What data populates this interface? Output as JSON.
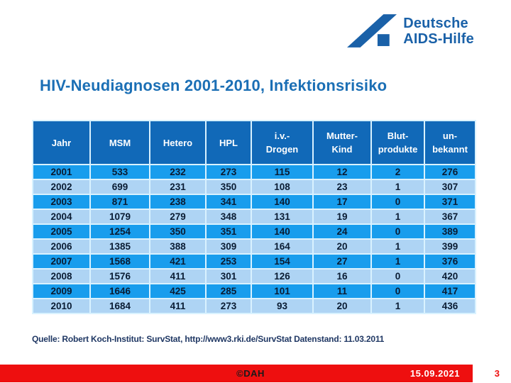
{
  "logo": {
    "line1": "Deutsche",
    "line2": "AIDS-Hilfe"
  },
  "title": "HIV-Neudiagnosen 2001-2010, Infektionsrisiko",
  "chart_data": {
    "type": "table",
    "title": "HIV-Neudiagnosen 2001-2010, Infektionsrisiko",
    "columns": [
      "Jahr",
      "MSM",
      "Hetero",
      "HPL",
      "i.v.-Drogen",
      "Mutter-Kind",
      "Blutprodukte",
      "unbekannt"
    ],
    "header_lines": [
      [
        "Jahr"
      ],
      [
        "MSM"
      ],
      [
        "Hetero"
      ],
      [
        "HPL"
      ],
      [
        "i.v.-",
        "Drogen"
      ],
      [
        "Mutter-",
        "Kind"
      ],
      [
        "Blut-",
        "produkte"
      ],
      [
        "un-",
        "bekannt"
      ]
    ],
    "rows": [
      [
        "2001",
        "533",
        "232",
        "273",
        "115",
        "12",
        "2",
        "276"
      ],
      [
        "2002",
        "699",
        "231",
        "350",
        "108",
        "23",
        "1",
        "307"
      ],
      [
        "2003",
        "871",
        "238",
        "341",
        "140",
        "17",
        "0",
        "371"
      ],
      [
        "2004",
        "1079",
        "279",
        "348",
        "131",
        "19",
        "1",
        "367"
      ],
      [
        "2005",
        "1254",
        "350",
        "351",
        "140",
        "24",
        "0",
        "389"
      ],
      [
        "2006",
        "1385",
        "388",
        "309",
        "164",
        "20",
        "1",
        "399"
      ],
      [
        "2007",
        "1568",
        "421",
        "253",
        "154",
        "27",
        "1",
        "376"
      ],
      [
        "2008",
        "1576",
        "411",
        "301",
        "126",
        "16",
        "0",
        "420"
      ],
      [
        "2009",
        "1646",
        "425",
        "285",
        "101",
        "11",
        "0",
        "417"
      ],
      [
        "2010",
        "1684",
        "411",
        "273",
        "93",
        "20",
        "1",
        "436"
      ]
    ]
  },
  "source": "Quelle: Robert Koch-Institut: SurvStat, http://www3.rki.de/SurvStat Datenstand: 11.03.2011",
  "footer": {
    "copyright": "©DAH",
    "date": "15.09.2021",
    "page": "3"
  },
  "colors": {
    "logo_blue": "#1a61a8",
    "title_blue": "#1b6fb5",
    "header_bg": "#1169b8",
    "row_bright": "#189ded",
    "row_light": "#aed4f4",
    "source_navy": "#203864",
    "footer_red": "#ee0f0f"
  }
}
